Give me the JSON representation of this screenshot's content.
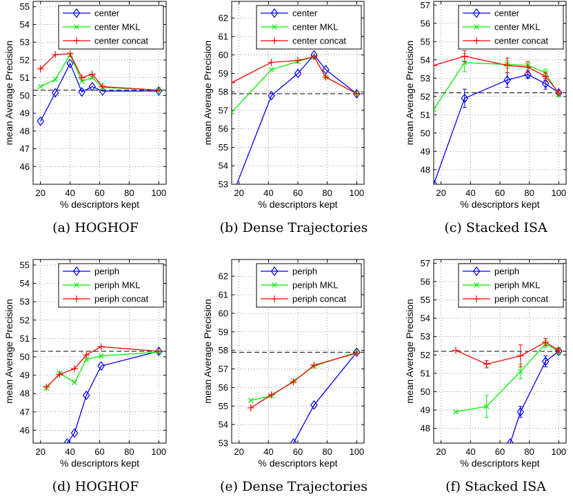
{
  "chart_data": [
    {
      "type": "line",
      "caption": "(a) HOGHOF",
      "xlabel": "% descriptors kept",
      "ylabel": "mean Average Precision",
      "xlim": [
        15,
        105
      ],
      "ylim": [
        45,
        55.3
      ],
      "xticks": [
        20,
        40,
        60,
        80,
        100
      ],
      "yticks": [
        46,
        47,
        48,
        49,
        50,
        51,
        52,
        53,
        54,
        55
      ],
      "grid": true,
      "legend": "top-right",
      "baseline": 50.3,
      "series": [
        {
          "name": "center",
          "color": "#0000ff",
          "marker": "diamond",
          "x": [
            20,
            30,
            40,
            48,
            55,
            62,
            100
          ],
          "y": [
            48.55,
            50.15,
            51.8,
            50.2,
            50.5,
            50.25,
            50.25
          ]
        },
        {
          "name": "center MKL",
          "color": "#00ee00",
          "marker": "x",
          "x": [
            20,
            30,
            40,
            48,
            55,
            62,
            100
          ],
          "y": [
            50.5,
            50.9,
            52.3,
            50.8,
            51.0,
            50.45,
            50.3
          ]
        },
        {
          "name": "center concat",
          "color": "#ff0000",
          "marker": "plus",
          "x": [
            20,
            30,
            40,
            48,
            55,
            62,
            100
          ],
          "y": [
            51.5,
            52.3,
            52.35,
            51.0,
            51.2,
            50.5,
            50.3
          ]
        }
      ]
    },
    {
      "type": "line",
      "caption": "(b) Dense Trajectories",
      "xlabel": "% descriptors kept",
      "ylabel": "mean Average Precision",
      "xlim": [
        15,
        105
      ],
      "ylim": [
        53,
        62.9
      ],
      "xticks": [
        20,
        40,
        60,
        80,
        100
      ],
      "yticks": [
        53,
        54,
        55,
        56,
        57,
        58,
        59,
        60,
        61,
        62
      ],
      "grid": true,
      "legend": "top-right",
      "baseline": 57.9,
      "series": [
        {
          "name": "center",
          "color": "#0000ff",
          "marker": "diamond",
          "x": [
            15,
            42,
            60,
            71,
            79,
            100
          ],
          "y": [
            52.3,
            57.8,
            59.0,
            60.0,
            59.2,
            57.9
          ]
        },
        {
          "name": "center MKL",
          "color": "#00ee00",
          "marker": "x",
          "x": [
            15,
            42,
            60,
            71,
            79,
            100
          ],
          "y": [
            56.9,
            59.2,
            59.65,
            59.9,
            58.8,
            57.9
          ]
        },
        {
          "name": "center concat",
          "color": "#ff0000",
          "marker": "plus",
          "x": [
            15,
            42,
            60,
            71,
            79,
            100
          ],
          "y": [
            58.5,
            59.6,
            59.7,
            59.9,
            58.8,
            57.9
          ]
        }
      ]
    },
    {
      "type": "line",
      "caption": "(c) Stacked ISA",
      "xlabel": "% descriptors kept",
      "ylabel": "mean Average Precision",
      "xlim": [
        15,
        105
      ],
      "ylim": [
        47.2,
        57.2
      ],
      "xticks": [
        20,
        40,
        60,
        80,
        100
      ],
      "yticks": [
        48,
        49,
        50,
        51,
        52,
        53,
        54,
        55,
        56,
        57
      ],
      "grid": true,
      "legend": "top-right",
      "baseline": 52.2,
      "series": [
        {
          "name": "center",
          "color": "#0000ff",
          "marker": "diamond",
          "x": [
            15,
            36,
            65,
            79,
            91,
            100
          ],
          "y": [
            47.2,
            51.9,
            52.9,
            53.2,
            52.7,
            52.2
          ],
          "err": [
            0,
            0.5,
            0.4,
            0.2,
            0.3,
            0.1
          ]
        },
        {
          "name": "center MKL",
          "color": "#00ee00",
          "marker": "x",
          "x": [
            15,
            36,
            65,
            79,
            91,
            100
          ],
          "y": [
            51.3,
            53.85,
            53.75,
            53.7,
            53.3,
            52.1
          ],
          "err": [
            0,
            0.5,
            0.2,
            0.2,
            0.2,
            0.1
          ]
        },
        {
          "name": "center concat",
          "color": "#ff0000",
          "marker": "plus",
          "x": [
            15,
            36,
            65,
            79,
            91,
            100
          ],
          "y": [
            53.7,
            54.2,
            53.7,
            53.6,
            53.1,
            52.2
          ],
          "err": [
            0,
            0.3,
            0.4,
            0.3,
            0.2,
            0.1
          ]
        }
      ]
    },
    {
      "type": "line",
      "caption": "(d) HOGHOF",
      "xlabel": "% descriptors kept",
      "ylabel": "mean Average Precision",
      "xlim": [
        15,
        105
      ],
      "ylim": [
        45.3,
        55.3
      ],
      "xticks": [
        20,
        40,
        60,
        80,
        100
      ],
      "yticks": [
        46,
        47,
        48,
        49,
        50,
        51,
        52,
        53,
        54,
        55
      ],
      "grid": true,
      "legend": "top-right",
      "baseline": 50.3,
      "series": [
        {
          "name": "periph",
          "color": "#0000ff",
          "marker": "diamond",
          "x": [
            38,
            43,
            51,
            61,
            100
          ],
          "y": [
            45.3,
            45.85,
            47.9,
            49.5,
            50.3
          ]
        },
        {
          "name": "periph MKL",
          "color": "#00ee00",
          "marker": "x",
          "x": [
            24,
            33,
            43,
            51,
            61,
            100
          ],
          "y": [
            48.3,
            49.1,
            48.6,
            49.85,
            50.05,
            50.25
          ]
        },
        {
          "name": "periph concat",
          "color": "#ff0000",
          "marker": "plus",
          "x": [
            24,
            33,
            43,
            51,
            61,
            100
          ],
          "y": [
            48.35,
            49.05,
            49.35,
            50.1,
            50.55,
            50.3
          ]
        }
      ]
    },
    {
      "type": "line",
      "caption": "(e) Dense Trajectories",
      "xlabel": "% descriptors kept",
      "ylabel": "mean Average Precision",
      "xlim": [
        15,
        105
      ],
      "ylim": [
        53,
        62.9
      ],
      "xticks": [
        20,
        40,
        60,
        80,
        100
      ],
      "yticks": [
        53,
        54,
        55,
        56,
        57,
        58,
        59,
        60,
        61,
        62
      ],
      "grid": true,
      "legend": "top-right",
      "baseline": 57.9,
      "series": [
        {
          "name": "periph",
          "color": "#0000ff",
          "marker": "diamond",
          "x": [
            57,
            71,
            100
          ],
          "y": [
            53.0,
            55.05,
            57.9
          ]
        },
        {
          "name": "periph MKL",
          "color": "#00ee00",
          "marker": "x",
          "x": [
            28,
            42,
            57,
            71,
            100
          ],
          "y": [
            55.3,
            55.55,
            56.35,
            57.15,
            57.9
          ]
        },
        {
          "name": "periph concat",
          "color": "#ff0000",
          "marker": "plus",
          "x": [
            28,
            42,
            57,
            71,
            100
          ],
          "y": [
            54.9,
            55.6,
            56.3,
            57.2,
            57.85
          ]
        }
      ]
    },
    {
      "type": "line",
      "caption": "(f) Stacked ISA",
      "xlabel": "% descriptors kept",
      "ylabel": "mean Average Precision",
      "xlim": [
        15,
        105
      ],
      "ylim": [
        47.2,
        57.2
      ],
      "xticks": [
        20,
        40,
        60,
        80,
        100
      ],
      "yticks": [
        48,
        49,
        50,
        51,
        52,
        53,
        54,
        55,
        56,
        57
      ],
      "grid": true,
      "legend": "top-right",
      "baseline": 52.2,
      "series": [
        {
          "name": "periph",
          "color": "#0000ff",
          "marker": "diamond",
          "x": [
            67,
            74,
            91,
            100
          ],
          "y": [
            47.2,
            48.9,
            51.65,
            52.2
          ],
          "err": [
            0,
            0.3,
            0.3,
            0.2
          ]
        },
        {
          "name": "periph MKL",
          "color": "#00ee00",
          "marker": "x",
          "x": [
            30,
            51,
            74,
            91,
            100
          ],
          "y": [
            48.9,
            49.2,
            51.1,
            52.6,
            52.2
          ],
          "err": [
            0,
            0.6,
            0.4,
            0.2,
            0.2
          ]
        },
        {
          "name": "periph concat",
          "color": "#ff0000",
          "marker": "plus",
          "x": [
            30,
            51,
            74,
            91,
            100
          ],
          "y": [
            52.25,
            51.5,
            51.95,
            52.7,
            52.25
          ],
          "err": [
            0,
            0.2,
            0.6,
            0.2,
            0.1
          ]
        }
      ]
    }
  ]
}
